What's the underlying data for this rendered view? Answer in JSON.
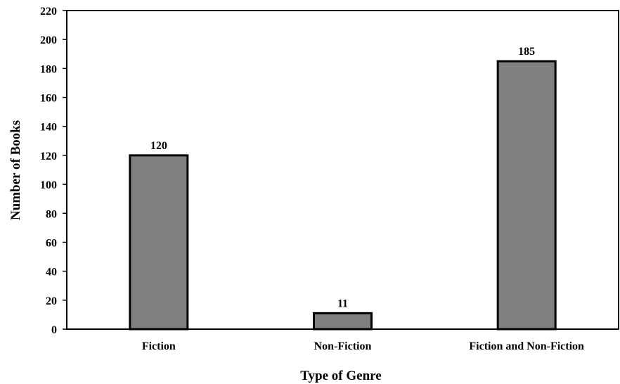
{
  "chart_data": {
    "type": "bar",
    "title": "",
    "xlabel": "Type of Genre",
    "ylabel": "Number of Books",
    "categories": [
      "Fiction",
      "Non-Fiction",
      "Fiction and Non-Fiction"
    ],
    "values": [
      120,
      11,
      185
    ],
    "data_labels": [
      "120",
      "11",
      "185"
    ],
    "ylim": [
      0,
      220
    ],
    "yticks": [
      0,
      20,
      40,
      60,
      80,
      100,
      120,
      140,
      160,
      180,
      200,
      220
    ],
    "grid": false,
    "legend": "none",
    "colors": {
      "bar_fill": "#808080",
      "bar_stroke": "#000000",
      "axis": "#000000"
    }
  }
}
